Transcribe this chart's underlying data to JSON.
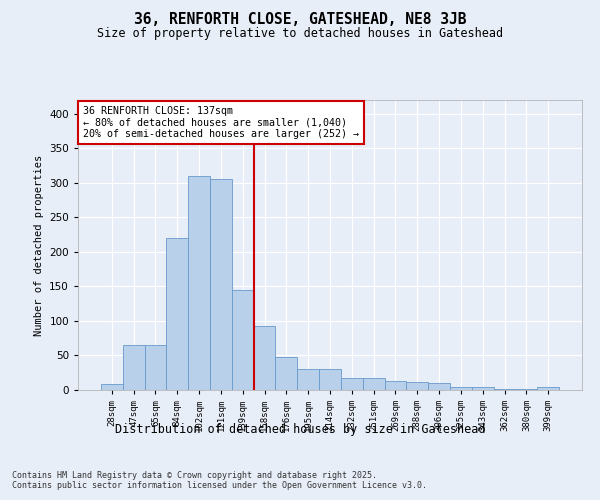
{
  "title": "36, RENFORTH CLOSE, GATESHEAD, NE8 3JB",
  "subtitle": "Size of property relative to detached houses in Gateshead",
  "xlabel": "Distribution of detached houses by size in Gateshead",
  "ylabel": "Number of detached properties",
  "categories": [
    "28sqm",
    "47sqm",
    "65sqm",
    "84sqm",
    "102sqm",
    "121sqm",
    "139sqm",
    "158sqm",
    "176sqm",
    "195sqm",
    "214sqm",
    "232sqm",
    "251sqm",
    "269sqm",
    "288sqm",
    "306sqm",
    "325sqm",
    "343sqm",
    "362sqm",
    "380sqm",
    "399sqm"
  ],
  "values": [
    8,
    65,
    65,
    220,
    310,
    305,
    145,
    92,
    48,
    30,
    30,
    18,
    18,
    13,
    11,
    10,
    5,
    4,
    2,
    2,
    4
  ],
  "bar_color": "#b8d0ea",
  "bar_edge_color": "#6699cc",
  "background_color": "#e8eef8",
  "grid_color": "#ffffff",
  "red_line_x": 6.5,
  "annotation_text": "36 RENFORTH CLOSE: 137sqm\n← 80% of detached houses are smaller (1,040)\n20% of semi-detached houses are larger (252) →",
  "annotation_box_color": "#ffffff",
  "annotation_box_edge": "#cc0000",
  "footer_text": "Contains HM Land Registry data © Crown copyright and database right 2025.\nContains public sector information licensed under the Open Government Licence v3.0.",
  "ylim": [
    0,
    420
  ],
  "yticks": [
    0,
    50,
    100,
    150,
    200,
    250,
    300,
    350,
    400
  ]
}
